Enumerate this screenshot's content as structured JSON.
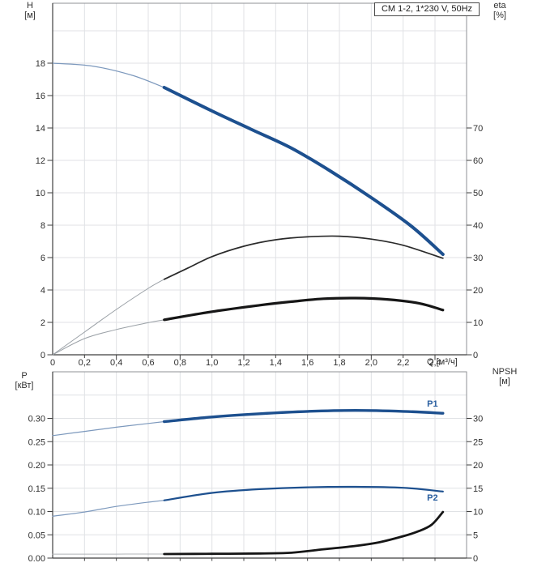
{
  "colors": {
    "grid": "#e0e2e5",
    "border": "#8f9295",
    "axis": "#3f3f3f",
    "text": "#303030",
    "curve_blue": "#1d508f",
    "thin_blue": "#7d99bd",
    "curve_black": "#161616",
    "curve_dark_gray": "#2a2a2a",
    "thin_gray": "#9aa0a6",
    "label_blue": "#2a5fa0"
  },
  "chart_data": [
    {
      "type": "line",
      "title": "CM 1-2, 1*230 V, 50Hz",
      "xlabel": "Q [м³/ч]",
      "xlim": [
        0,
        2.6
      ],
      "grid": true,
      "x_ticks": {
        "labels": [
          "0",
          "0,2",
          "0,4",
          "0,6",
          "0,8",
          "1,0",
          "1,2",
          "1,4",
          "1,6",
          "1,8",
          "2,0",
          "2,2",
          "2,4"
        ],
        "values": [
          0,
          0.2,
          0.4,
          0.6,
          0.8,
          1.0,
          1.2,
          1.4,
          1.6,
          1.8,
          2.0,
          2.2,
          2.4
        ]
      },
      "left_axis": {
        "label_line1": "H",
        "label_line2": "[м]",
        "lim": [
          0,
          21.7
        ],
        "ticks": {
          "labels": [
            "0",
            "2",
            "4",
            "6",
            "8",
            "10",
            "12",
            "14",
            "16",
            "18"
          ],
          "values": [
            0,
            2,
            4,
            6,
            8,
            10,
            12,
            14,
            16,
            18
          ]
        }
      },
      "right_axis": {
        "label_line1": "eta",
        "label_line2": "[%]",
        "lim": [
          0,
          108.5
        ],
        "ticks": {
          "labels": [
            "0",
            "10",
            "20",
            "30",
            "40",
            "50",
            "60",
            "70"
          ],
          "values": [
            0,
            10,
            20,
            30,
            40,
            50,
            60,
            70
          ]
        }
      },
      "grid_y_values": [
        2,
        4,
        6,
        8,
        10,
        12,
        14,
        16,
        18,
        20
      ],
      "series": [
        {
          "name": "H-curve",
          "axis": "left",
          "split_q": 0.7,
          "color": "#1d508f",
          "width": 4,
          "thin_color": "#7d99bd",
          "thin_width": 1.2,
          "points": [
            [
              0,
              18
            ],
            [
              0.25,
              17.82
            ],
            [
              0.5,
              17.25
            ],
            [
              0.7,
              16.5
            ],
            [
              1.0,
              15.05
            ],
            [
              1.25,
              13.9
            ],
            [
              1.5,
              12.75
            ],
            [
              1.75,
              11.3
            ],
            [
              2.0,
              9.7
            ],
            [
              2.25,
              7.95
            ],
            [
              2.45,
              6.2
            ]
          ]
        },
        {
          "name": "eta-pump-curve",
          "axis": "right",
          "split_q": 0.7,
          "color": "#2a2a2a",
          "width": 1.7,
          "thin_color": "#9aa0a6",
          "thin_width": 1,
          "points": [
            [
              0,
              0
            ],
            [
              0.2,
              7
            ],
            [
              0.4,
              14
            ],
            [
              0.6,
              20.5
            ],
            [
              0.7,
              23.3
            ],
            [
              0.85,
              26.8
            ],
            [
              1.0,
              30.3
            ],
            [
              1.2,
              33.5
            ],
            [
              1.4,
              35.5
            ],
            [
              1.6,
              36.4
            ],
            [
              1.8,
              36.6
            ],
            [
              2.0,
              35.7
            ],
            [
              2.2,
              33.8
            ],
            [
              2.45,
              29.8
            ]
          ]
        },
        {
          "name": "eta-pump-motor-curve",
          "axis": "right",
          "split_q": 0.7,
          "color": "#161616",
          "width": 3.2,
          "thin_color": "#9aa0a6",
          "thin_width": 1,
          "points": [
            [
              0,
              0
            ],
            [
              0.2,
              5
            ],
            [
              0.4,
              7.8
            ],
            [
              0.6,
              9.9
            ],
            [
              0.7,
              10.8
            ],
            [
              1.0,
              13.3
            ],
            [
              1.3,
              15.3
            ],
            [
              1.5,
              16.4
            ],
            [
              1.7,
              17.3
            ],
            [
              1.9,
              17.5
            ],
            [
              2.1,
              17.1
            ],
            [
              2.3,
              15.9
            ],
            [
              2.45,
              13.8
            ]
          ]
        }
      ]
    },
    {
      "type": "line",
      "xlim": [
        0,
        2.6
      ],
      "grid": true,
      "x_ticks": {
        "labels": null,
        "values": [
          0.2,
          0.4,
          0.6,
          0.8,
          1.0,
          1.2,
          1.4,
          1.6,
          1.8,
          2.0,
          2.2,
          2.4
        ]
      },
      "left_axis": {
        "label_line1": "P",
        "label_line2": "[кВт]",
        "lim": [
          0,
          0.4
        ],
        "ticks": {
          "labels": [
            "0.00",
            "0.05",
            "0.10",
            "0.15",
            "0.20",
            "0.25",
            "0.30"
          ],
          "values": [
            0,
            0.05,
            0.1,
            0.15,
            0.2,
            0.25,
            0.3
          ]
        }
      },
      "right_axis": {
        "label_line1": "NPSH",
        "label_line2": "[м]",
        "lim": [
          0,
          40
        ],
        "ticks": {
          "labels": [
            "0",
            "5",
            "10",
            "15",
            "20",
            "25",
            "30"
          ],
          "values": [
            0,
            5,
            10,
            15,
            20,
            25,
            30
          ]
        }
      },
      "grid_y_values": [
        0.05,
        0.1,
        0.15,
        0.2,
        0.25,
        0.3,
        0.35
      ],
      "series": [
        {
          "name": "P1-curve",
          "axis": "left",
          "split_q": 0.7,
          "color": "#1d508f",
          "width": 3.4,
          "thin_color": "#7d99bd",
          "thin_width": 1.2,
          "label": {
            "text": "P1",
            "q": 2.35,
            "v": 0.329
          },
          "points": [
            [
              0,
              0.263
            ],
            [
              0.2,
              0.272
            ],
            [
              0.4,
              0.281
            ],
            [
              0.6,
              0.289
            ],
            [
              0.7,
              0.293
            ],
            [
              1.0,
              0.303
            ],
            [
              1.3,
              0.31
            ],
            [
              1.6,
              0.315
            ],
            [
              1.9,
              0.317
            ],
            [
              2.2,
              0.315
            ],
            [
              2.45,
              0.311
            ]
          ]
        },
        {
          "name": "P2-curve",
          "axis": "left",
          "split_q": 0.7,
          "color": "#1d508f",
          "width": 2.2,
          "thin_color": "#7d99bd",
          "thin_width": 1.2,
          "label": {
            "text": "P2",
            "q": 2.35,
            "v": 0.127
          },
          "points": [
            [
              0,
              0.09
            ],
            [
              0.2,
              0.099
            ],
            [
              0.4,
              0.111
            ],
            [
              0.6,
              0.12
            ],
            [
              0.7,
              0.124
            ],
            [
              1.0,
              0.14
            ],
            [
              1.3,
              0.148
            ],
            [
              1.6,
              0.152
            ],
            [
              1.9,
              0.153
            ],
            [
              2.2,
              0.151
            ],
            [
              2.45,
              0.143
            ]
          ]
        },
        {
          "name": "NPSH-curve",
          "axis": "right",
          "split_q": 0.7,
          "color": "#161616",
          "width": 2.8,
          "thin_color": "#b0b4b8",
          "thin_width": 1,
          "points": [
            [
              0,
              0.85
            ],
            [
              0.4,
              0.86
            ],
            [
              0.7,
              0.87
            ],
            [
              1.0,
              0.92
            ],
            [
              1.3,
              1.0
            ],
            [
              1.5,
              1.15
            ],
            [
              1.7,
              1.9
            ],
            [
              1.9,
              2.6
            ],
            [
              2.05,
              3.4
            ],
            [
              2.2,
              4.7
            ],
            [
              2.3,
              5.8
            ],
            [
              2.38,
              7.2
            ],
            [
              2.45,
              9.9
            ]
          ]
        }
      ]
    }
  ]
}
